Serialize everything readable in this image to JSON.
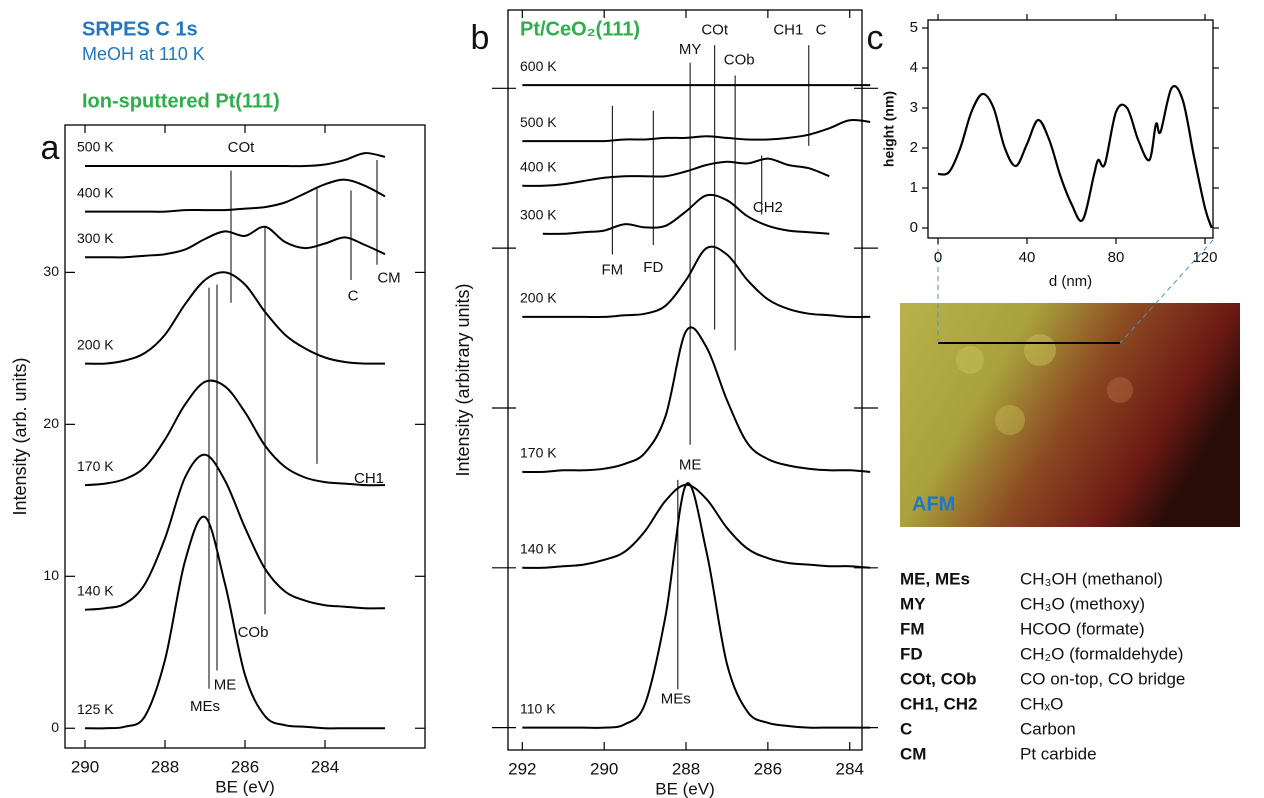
{
  "header": {
    "title": "SRPES C 1s",
    "subtitle": "MeOH at 110 K"
  },
  "chart_data": [
    {
      "type": "line",
      "panel": "a",
      "title": "Ion-sputtered Pt(111)",
      "x_label": "BE (eV)",
      "y_label": "Intensity (arb. units)",
      "xlim": [
        290.5,
        281.5
      ],
      "ylim": [
        -1.3,
        39.7
      ],
      "xticks": [
        290,
        288,
        286,
        284
      ],
      "yticks": [
        0,
        10,
        20,
        30
      ],
      "ytick_labels": true,
      "color": "#000000",
      "x": [
        290,
        289.5,
        289,
        288.5,
        288,
        287.5,
        287,
        286.5,
        286,
        285.5,
        285,
        284.5,
        284,
        283.5,
        283,
        282.5
      ],
      "series": [
        {
          "name": "125 K",
          "values": [
            0,
            0,
            0.1,
            0.8,
            4.5,
            11,
            13.9,
            9.5,
            3.5,
            0.8,
            0.2,
            0.1,
            0,
            0,
            0,
            0
          ]
        },
        {
          "name": "140 K",
          "values": [
            7.8,
            7.9,
            8.2,
            9.5,
            12.5,
            16.5,
            18,
            16.3,
            13.2,
            10.5,
            9,
            8.4,
            8.1,
            8,
            7.9,
            7.9
          ]
        },
        {
          "name": "170 K",
          "values": [
            16,
            16.1,
            16.4,
            17.2,
            19,
            21.3,
            22.8,
            22.5,
            20.8,
            18.6,
            17.2,
            16.5,
            16.2,
            16.1,
            16,
            16
          ]
        },
        {
          "name": "200 K",
          "values": [
            24,
            24,
            24.2,
            24.7,
            25.9,
            27.9,
            29.5,
            30,
            29.2,
            27.4,
            25.9,
            25,
            24.4,
            24.1,
            24,
            24
          ]
        },
        {
          "name": "300 K",
          "values": [
            31,
            31,
            31,
            31.1,
            31.2,
            31.5,
            32.2,
            32.7,
            32.4,
            33,
            32,
            31.6,
            31.9,
            32.3,
            31.8,
            31.2
          ]
        },
        {
          "name": "400 K",
          "values": [
            34,
            34,
            34,
            34,
            34,
            34.1,
            34.1,
            34.1,
            34.2,
            34.3,
            34.6,
            35.2,
            35.8,
            36.1,
            35.7,
            35
          ]
        },
        {
          "name": "500 K",
          "values": [
            37,
            37,
            37,
            37,
            37,
            37,
            37,
            37,
            37,
            37,
            37,
            37,
            37.1,
            37.4,
            37.85,
            37.6
          ]
        }
      ],
      "annotations": [
        {
          "text": "COt",
          "x": 286.1,
          "y": 38.2
        },
        {
          "text": "C",
          "x": 283.3,
          "y": 28.4
        },
        {
          "text": "CM",
          "x": 282.4,
          "y": 29.6
        },
        {
          "text": "CH1",
          "x": 282.9,
          "y": 16.4
        },
        {
          "text": "COb",
          "x": 285.8,
          "y": 6.25
        },
        {
          "text": "ME",
          "x": 286.5,
          "y": 2.8
        },
        {
          "text": "MEs",
          "x": 287.0,
          "y": 1.4
        }
      ],
      "lines": [
        {
          "x": 286.9,
          "y1": 2.6,
          "y2": 29
        },
        {
          "x": 286.7,
          "y1": 3.8,
          "y2": 29.2
        },
        {
          "x": 286.35,
          "y1": 28,
          "y2": 36.7
        },
        {
          "x": 285.5,
          "y1": 7.5,
          "y2": 33
        },
        {
          "x": 284.2,
          "y1": 17.4,
          "y2": 35.5
        },
        {
          "x": 283.35,
          "y1": 29.5,
          "y2": 35.4
        },
        {
          "x": 282.7,
          "y1": 30.5,
          "y2": 37.4
        }
      ]
    },
    {
      "type": "line",
      "panel": "b",
      "title": "Pt/CeO₂(111)",
      "x_label": "BE (eV)",
      "y_label": "Intensity (arbitrary units)",
      "xlim": [
        292.35,
        283.7
      ],
      "ylim": [
        -1.4,
        44.9
      ],
      "xticks": [
        292,
        290,
        288,
        286,
        284
      ],
      "yticks": [
        0,
        10,
        20,
        30,
        40
      ],
      "ytick_labels": false,
      "color": "#000000",
      "x": [
        292,
        291.5,
        291,
        290.5,
        290,
        289.5,
        289,
        288.5,
        288,
        287.5,
        287,
        286.5,
        286,
        285.5,
        285,
        284.5,
        284,
        283.5
      ],
      "series": [
        {
          "name": "110 K",
          "values": [
            0,
            0,
            0,
            0,
            0,
            0.2,
            1.5,
            7,
            15.2,
            11,
            4,
            1,
            0.3,
            0.1,
            0,
            0,
            0,
            0
          ]
        },
        {
          "name": "140 K",
          "values": [
            10,
            10,
            10.1,
            10.2,
            10.5,
            11,
            12.3,
            14.2,
            15.2,
            14.3,
            12.5,
            11.2,
            10.6,
            10.3,
            10.2,
            10.1,
            10.1,
            10
          ]
        },
        {
          "name": "170 K",
          "values": [
            16,
            16,
            16.1,
            16.1,
            16.2,
            16.5,
            17.2,
            19.5,
            24.8,
            23.8,
            20.5,
            17.8,
            16.8,
            16.4,
            16.2,
            16.1,
            16.1,
            16
          ]
        },
        {
          "name": "200 K",
          "values": [
            25.7,
            25.7,
            25.7,
            25.7,
            25.7,
            25.8,
            25.9,
            26.4,
            28,
            30,
            29.6,
            28,
            26.8,
            26.2,
            25.9,
            25.8,
            25.7,
            25.7
          ]
        },
        {
          "name": "300 K",
          "values": [
            null,
            30.9,
            30.9,
            31,
            31.1,
            31.5,
            31.3,
            31.4,
            32.3,
            33.3,
            33,
            32,
            31.4,
            31.1,
            31,
            30.9,
            null,
            null
          ]
        },
        {
          "name": "400 K",
          "values": [
            33.9,
            33.9,
            34,
            34.2,
            34.4,
            34.5,
            34.5,
            34.5,
            34.8,
            35.2,
            35.4,
            35.3,
            35.6,
            35.2,
            35,
            34.5,
            null,
            null
          ]
        },
        {
          "name": "500 K",
          "values": [
            36.7,
            36.7,
            36.7,
            36.7,
            36.7,
            36.8,
            36.8,
            36.9,
            36.9,
            37,
            36.9,
            36.8,
            36.8,
            36.9,
            37.1,
            37.5,
            38,
            37.9
          ]
        },
        {
          "name": "600 K",
          "values": [
            40.2,
            40.2,
            40.2,
            40.2,
            40.2,
            40.2,
            40.2,
            40.2,
            40.2,
            40.2,
            40.2,
            40.2,
            40.2,
            40.2,
            40.2,
            40.2,
            40.2,
            40.2
          ]
        }
      ],
      "annotations": [
        {
          "text": "FM",
          "x": 289.8,
          "y": 28.6
        },
        {
          "text": "FD",
          "x": 288.8,
          "y": 28.75
        },
        {
          "text": "MY",
          "x": 287.9,
          "y": 42.4
        },
        {
          "text": "COt",
          "x": 287.3,
          "y": 43.6
        },
        {
          "text": "COb",
          "x": 286.7,
          "y": 41.75
        },
        {
          "text": "CH1",
          "x": 285.5,
          "y": 43.6
        },
        {
          "text": "C",
          "x": 284.7,
          "y": 43.6
        },
        {
          "text": "CH2",
          "x": 286.0,
          "y": 32.5
        },
        {
          "text": "ME",
          "x": 287.9,
          "y": 16.4
        },
        {
          "text": "MEs",
          "x": 288.25,
          "y": 1.75
        }
      ],
      "lines": [
        {
          "x": 289.8,
          "y1": 29.6,
          "y2": 38.9
        },
        {
          "x": 288.8,
          "y1": 30.2,
          "y2": 38.6
        },
        {
          "x": 287.9,
          "y1": 17.7,
          "y2": 41.6
        },
        {
          "x": 287.3,
          "y1": 24.9,
          "y2": 42.7
        },
        {
          "x": 286.8,
          "y1": 23.6,
          "y2": 40.8
        },
        {
          "x": 286.15,
          "y1": 32.1,
          "y2": 35.8
        },
        {
          "x": 285.0,
          "y1": 36.4,
          "y2": 42.7
        },
        {
          "x": 288.2,
          "y1": 2.4,
          "y2": 15.5
        }
      ]
    },
    {
      "type": "profile",
      "panel": "c",
      "x_label": "d (nm)",
      "y_label": "height (nm)",
      "xlim": [
        -4.5,
        123.6
      ],
      "ylim": [
        -0.25,
        5.2
      ],
      "xticks": [
        0,
        40,
        80,
        120
      ],
      "yticks": [
        0,
        1,
        2,
        3,
        4,
        5
      ],
      "color": "#000000",
      "x": [
        0,
        5,
        10,
        15,
        20,
        25,
        30,
        35,
        40,
        45,
        50,
        55,
        60,
        65,
        70,
        72,
        75,
        80,
        85,
        90,
        95,
        98,
        100,
        105,
        110,
        115,
        120,
        123
      ],
      "values": [
        1.35,
        1.4,
        2.0,
        2.9,
        3.35,
        3.0,
        2.0,
        1.55,
        2.1,
        2.7,
        2.2,
        1.3,
        0.6,
        0.2,
        1.3,
        1.7,
        1.6,
        2.9,
        3.0,
        2.2,
        1.7,
        2.6,
        2.4,
        3.5,
        3.2,
        1.8,
        0.5,
        0
      ]
    }
  ],
  "image": {
    "label": "AFM"
  },
  "legend_table": {
    "rows": [
      [
        "ME, MEs",
        "CH₃OH (methanol)"
      ],
      [
        "MY",
        "CH₃O (methoxy)"
      ],
      [
        "FM",
        "HCOO (formate)"
      ],
      [
        "FD",
        "CH₂O (formaldehyde)"
      ],
      [
        "COt, COb",
        "CO on-top, CO bridge"
      ],
      [
        "CH1, CH2",
        "CHₓO"
      ],
      [
        "C",
        "Carbon"
      ],
      [
        "CM",
        "Pt carbide"
      ]
    ]
  }
}
